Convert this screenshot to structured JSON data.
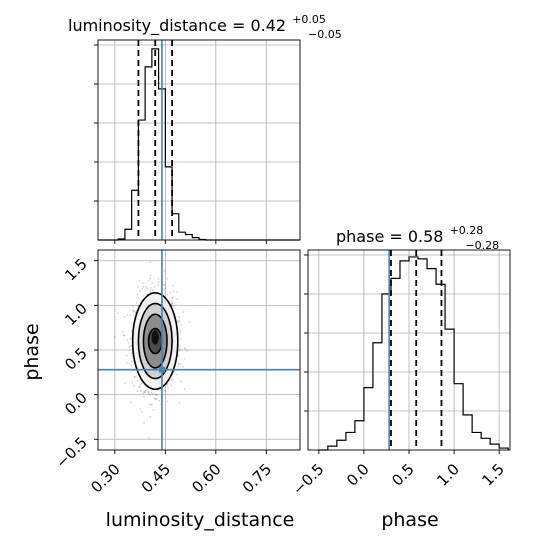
{
  "chart_data": {
    "type": "corner-plot",
    "parameters": [
      "luminosity_distance",
      "phase"
    ],
    "truth": {
      "luminosity_distance": 0.44,
      "phase": 0.28
    },
    "panels": [
      {
        "id": "ld-marginal",
        "type": "histogram",
        "parameter": "luminosity_distance",
        "title": {
          "main": "luminosity_distance = 0.42",
          "upper": "+0.05",
          "lower": "−0.05"
        },
        "median": 0.42,
        "q16": 0.37,
        "q84": 0.47,
        "xlim": [
          0.25,
          0.85
        ],
        "bin_edges": [
          0.25,
          0.27,
          0.29,
          0.31,
          0.33,
          0.35,
          0.37,
          0.39,
          0.41,
          0.43,
          0.45,
          0.47,
          0.49,
          0.51,
          0.53,
          0.55,
          0.57,
          0.59,
          0.61,
          0.63,
          0.65,
          0.67,
          0.69,
          0.71,
          0.73,
          0.75,
          0.77,
          0.79,
          0.81,
          0.83,
          0.85
        ],
        "counts": [
          0,
          0,
          0,
          0.005,
          0.055,
          0.255,
          0.615,
          0.888,
          0.98,
          0.775,
          0.375,
          0.135,
          0.04,
          0.028,
          0.012,
          0.003,
          0,
          0,
          0,
          0,
          0,
          0,
          0,
          0,
          0,
          0,
          0,
          0,
          0,
          0
        ]
      },
      {
        "id": "joint",
        "type": "2d-density",
        "x": "luminosity_distance",
        "y": "phase",
        "xlim": [
          0.25,
          0.85
        ],
        "ylim": [
          -0.62,
          1.62
        ],
        "x_ticks": [
          "0.30",
          "0.45",
          "0.60",
          "0.75"
        ],
        "y_ticks": [
          "−0.5",
          "0.0",
          "0.5",
          "1.0",
          "1.5"
        ],
        "center": [
          0.42,
          0.6
        ],
        "contour_levels": [
          {
            "rx": 0.02,
            "ry": 0.14
          },
          {
            "rx": 0.035,
            "ry": 0.3
          },
          {
            "rx": 0.05,
            "ry": 0.42
          },
          {
            "rx": 0.067,
            "ry": 0.54
          }
        ]
      },
      {
        "id": "phase-marginal",
        "type": "histogram",
        "parameter": "phase",
        "title": {
          "main": "phase = 0.58",
          "upper": "+0.28",
          "lower": "−0.28"
        },
        "median": 0.58,
        "q16": 0.3,
        "q84": 0.86,
        "xlim": [
          -0.62,
          1.62
        ],
        "x_ticks": [
          "−0.5",
          "0.0",
          "0.5",
          "1.0",
          "1.5"
        ],
        "bin_edges": [
          -0.5,
          -0.4,
          -0.3,
          -0.2,
          -0.1,
          0.0,
          0.1,
          0.2,
          0.3,
          0.4,
          0.5,
          0.6,
          0.7,
          0.8,
          0.9,
          1.0,
          1.1,
          1.2,
          1.3,
          1.4,
          1.5,
          1.6
        ],
        "counts": [
          0.0,
          0.02,
          0.05,
          0.09,
          0.15,
          0.32,
          0.55,
          0.8,
          0.88,
          0.97,
          0.99,
          0.98,
          0.93,
          0.85,
          0.62,
          0.34,
          0.18,
          0.09,
          0.06,
          0.03,
          0.01
        ]
      }
    ],
    "xlabels": [
      "luminosity_distance",
      "phase"
    ],
    "ylabel": "phase",
    "grid": true
  },
  "colors": {
    "truth": "#4682b4",
    "hist": "#000000",
    "grid": "#b0b0b0",
    "contour_fills": [
      "#f2f2f2",
      "#d0d0d0",
      "#8c8c8c",
      "#4a4a4a",
      "#101010"
    ]
  }
}
